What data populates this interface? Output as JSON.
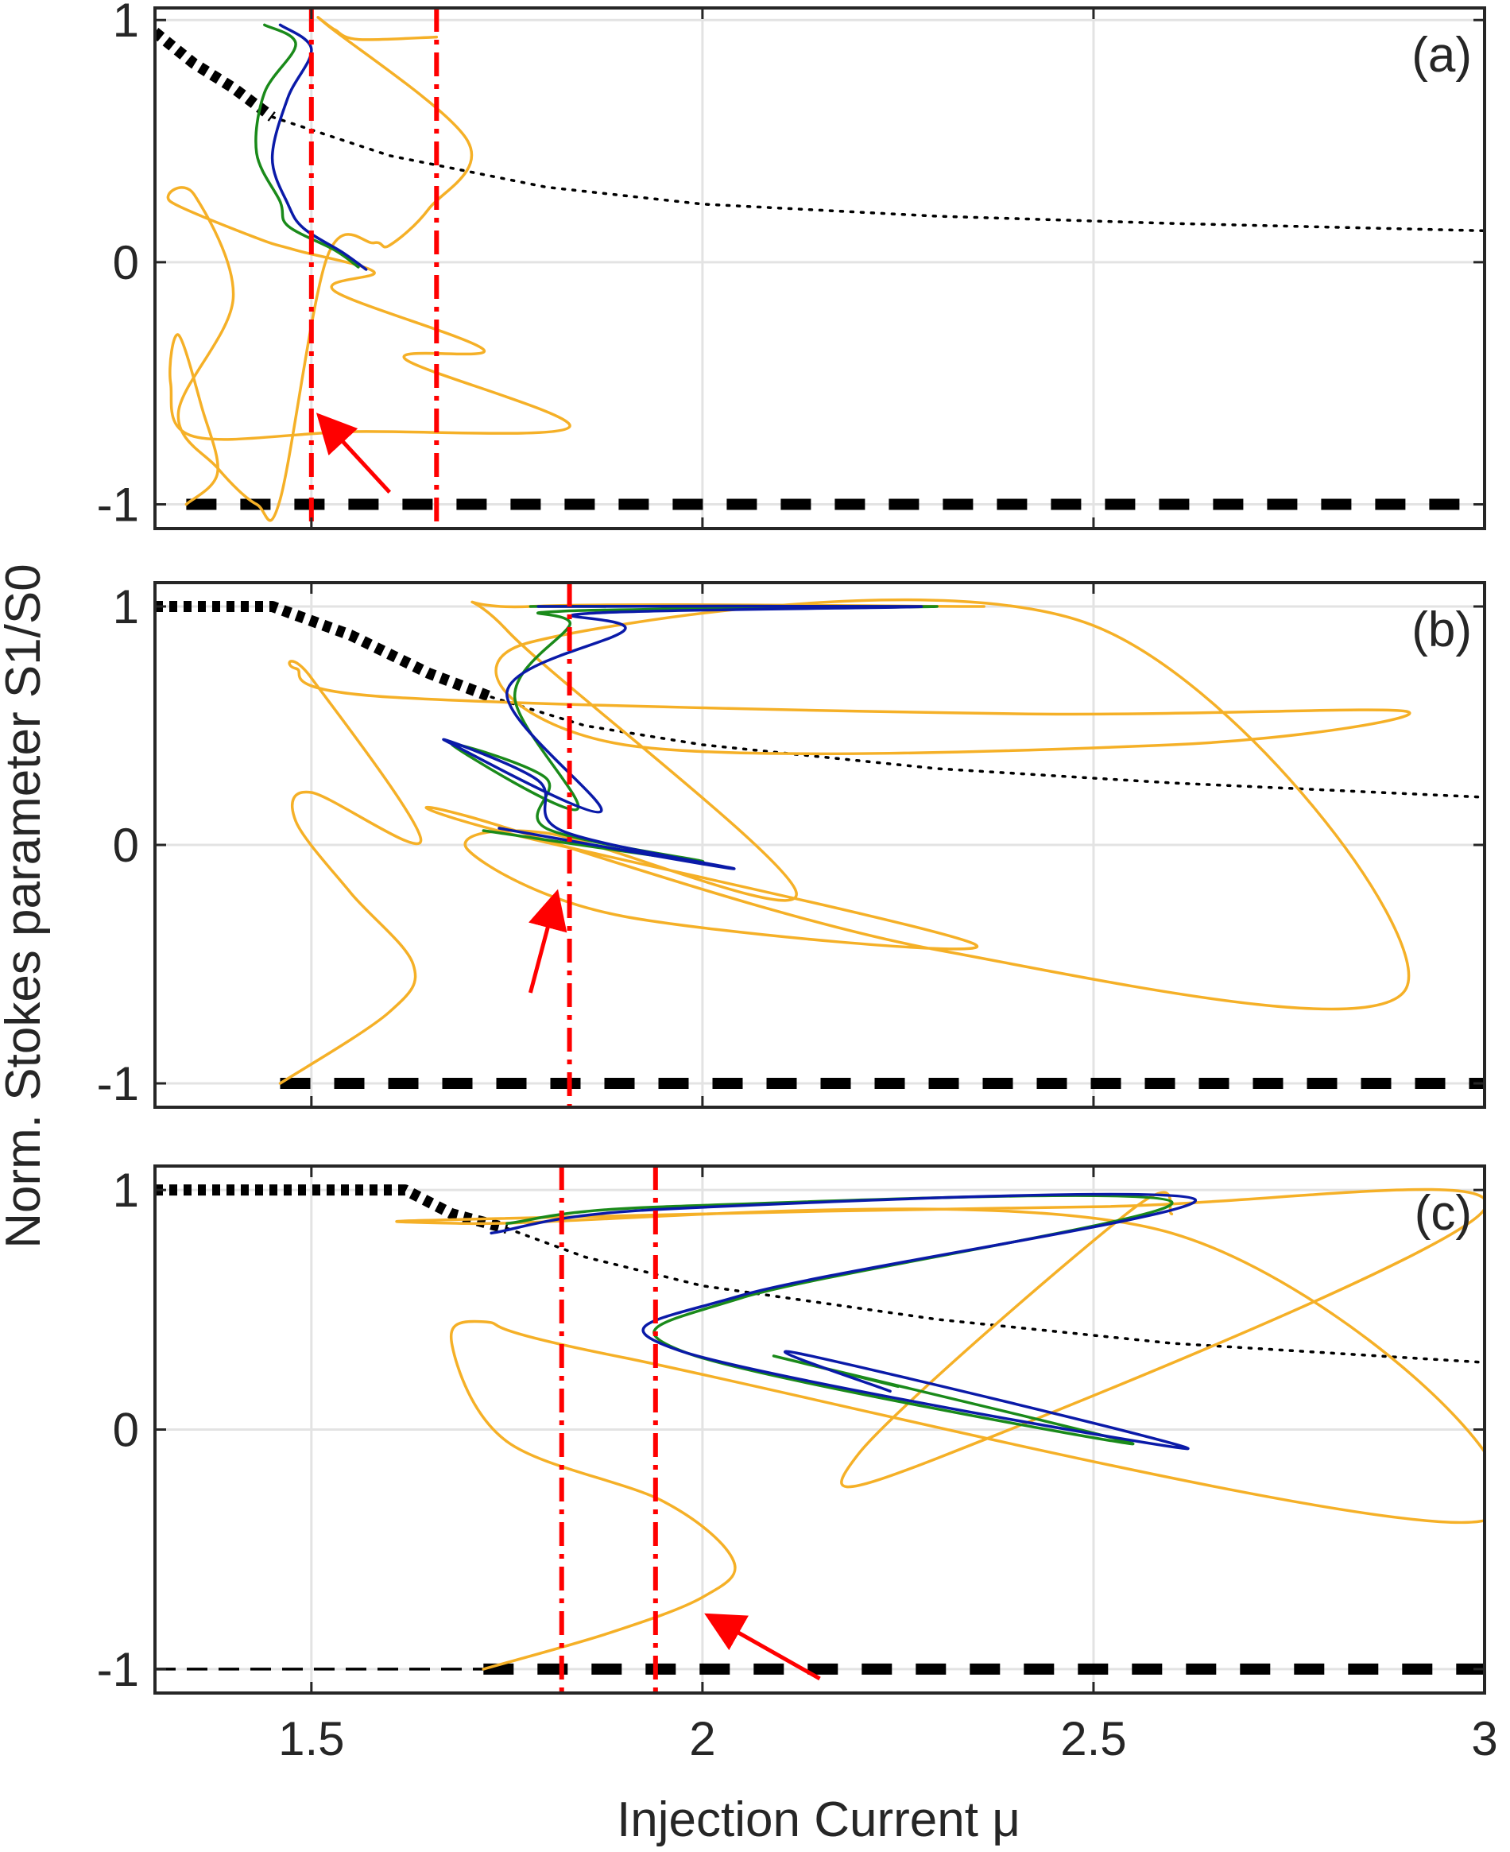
{
  "figure": {
    "xlabel": "Injection Current μ",
    "ylabel": "Norm. Stokes parameter S1/S0"
  },
  "colors": {
    "orange": "#f5b027",
    "green": "#1a8a1a",
    "blue": "#0a1aa8",
    "red": "#ff0000",
    "black": "#000000",
    "grid": "#e3e3e3",
    "axis": "#262626"
  },
  "chart_data": [
    {
      "type": "line",
      "panel": "(a)",
      "xlim": [
        1.3,
        3.0
      ],
      "ylim": [
        -1.1,
        1.05
      ],
      "grid": true,
      "xticks": [
        1.5,
        2,
        2.5,
        3
      ],
      "xtick_labels": [
        "1.5",
        "2",
        "2.5",
        "3"
      ],
      "yticks": [
        -1,
        0,
        1
      ],
      "ytick_labels": [
        "-1",
        "0",
        "1"
      ],
      "series": [
        {
          "name": "stable branch (thick dotted)",
          "style": "thick-dotted",
          "color": "black",
          "x": [
            1.3,
            1.35,
            1.4,
            1.45
          ],
          "y": [
            0.95,
            0.82,
            0.72,
            0.6
          ]
        },
        {
          "name": "unstable branch (dotted)",
          "style": "dotted",
          "color": "black",
          "x": [
            1.45,
            1.6,
            1.8,
            2.0,
            2.3,
            2.6,
            3.0
          ],
          "y": [
            0.6,
            0.44,
            0.31,
            0.24,
            0.19,
            0.16,
            0.13
          ]
        },
        {
          "name": "S1/S0 = -1 branch (dashed)",
          "style": "thick-dashed",
          "color": "black",
          "x": [
            1.34,
            3.0
          ],
          "y": [
            -1,
            -1
          ]
        },
        {
          "name": "orange trajectory",
          "style": "solid",
          "color": "orange",
          "x": [
            1.34,
            1.38,
            1.36,
            1.33,
            1.32,
            1.35,
            1.55,
            1.83,
            1.62,
            1.72,
            1.53,
            1.58,
            1.48,
            1.43,
            1.32,
            1.35,
            1.4,
            1.33,
            1.38,
            1.43,
            1.46,
            1.52,
            1.58,
            1.6,
            1.65,
            1.7,
            1.52,
            1.53,
            1.56,
            1.66
          ],
          "y": [
            -1,
            -0.87,
            -0.6,
            -0.3,
            -0.5,
            -0.72,
            -0.7,
            -0.68,
            -0.4,
            -0.36,
            -0.12,
            -0.04,
            0.05,
            0.1,
            0.25,
            0.28,
            -0.15,
            -0.62,
            -0.85,
            -1.0,
            -0.98,
            0.02,
            0.08,
            0.07,
            0.22,
            0.5,
            0.98,
            0.96,
            0.92,
            0.93
          ]
        },
        {
          "name": "green trajectory",
          "style": "solid",
          "color": "green",
          "x": [
            1.44,
            1.48,
            1.44,
            1.43,
            1.46,
            1.47,
            1.53,
            1.56
          ],
          "y": [
            0.98,
            0.9,
            0.7,
            0.45,
            0.25,
            0.15,
            0.05,
            -0.02
          ]
        },
        {
          "name": "blue trajectory",
          "style": "solid",
          "color": "blue",
          "x": [
            1.46,
            1.5,
            1.47,
            1.45,
            1.47,
            1.49,
            1.54,
            1.57
          ],
          "y": [
            0.98,
            0.88,
            0.68,
            0.43,
            0.24,
            0.14,
            0.04,
            -0.03
          ]
        }
      ],
      "vertical_lines": [
        1.5,
        1.66
      ],
      "arrow": {
        "from": [
          1.6,
          -0.95
        ],
        "to": [
          1.52,
          -0.67
        ]
      }
    },
    {
      "type": "line",
      "panel": "(b)",
      "xlim": [
        1.3,
        3.0
      ],
      "ylim": [
        -1.1,
        1.1
      ],
      "grid": true,
      "xticks": [
        1.5,
        2,
        2.5,
        3
      ],
      "xtick_labels": [
        "1.5",
        "2",
        "2.5",
        "3"
      ],
      "yticks": [
        -1,
        0,
        1
      ],
      "ytick_labels": [
        "-1",
        "0",
        "1"
      ],
      "series": [
        {
          "name": "stable branch (thick dotted)",
          "style": "thick-dotted",
          "color": "black",
          "x": [
            1.3,
            1.45,
            1.55,
            1.65,
            1.73
          ],
          "y": [
            1.0,
            1.0,
            0.88,
            0.72,
            0.62
          ]
        },
        {
          "name": "unstable branch (dotted)",
          "style": "dotted",
          "color": "black",
          "x": [
            1.73,
            1.85,
            2.0,
            2.3,
            2.6,
            3.0
          ],
          "y": [
            0.62,
            0.5,
            0.42,
            0.32,
            0.26,
            0.2
          ]
        },
        {
          "name": "S1/S0 = -1 branch (dashed)",
          "style": "thick-dashed",
          "color": "black",
          "x": [
            1.46,
            3.0
          ],
          "y": [
            -1,
            -1
          ]
        },
        {
          "name": "orange trajectory",
          "style": "solid",
          "color": "orange",
          "x": [
            1.46,
            1.6,
            1.63,
            1.55,
            1.48,
            1.5,
            1.64,
            1.5,
            1.48,
            1.6,
            2.4,
            2.9,
            2.6,
            1.9,
            1.78,
            2.5,
            2.9,
            2.3,
            1.7,
            1.75,
            2.35,
            1.9,
            1.7,
            1.8,
            2.12,
            1.75,
            1.78,
            2.36
          ],
          "y": [
            -1,
            -0.7,
            -0.5,
            -0.2,
            0.1,
            0.22,
            0.02,
            0.7,
            0.74,
            0.62,
            0.55,
            0.56,
            0.42,
            0.42,
            0.85,
            0.92,
            -0.6,
            -0.44,
            0.12,
            0.05,
            -0.42,
            -0.3,
            -0.02,
            0.05,
            -0.2,
            0.9,
            1.0,
            1.0
          ]
        },
        {
          "name": "green trajectory",
          "style": "solid",
          "color": "green",
          "x": [
            1.78,
            2.3,
            1.82,
            1.83,
            1.76,
            1.84,
            1.68,
            1.8,
            1.8,
            2.0,
            1.72
          ],
          "y": [
            1.0,
            1.0,
            0.98,
            0.92,
            0.62,
            0.15,
            0.42,
            0.28,
            0.07,
            -0.07,
            0.06
          ]
        },
        {
          "name": "blue trajectory",
          "style": "solid",
          "color": "blue",
          "x": [
            1.79,
            2.28,
            1.85,
            1.9,
            1.75,
            1.87,
            1.67,
            1.79,
            1.82,
            2.04,
            1.74
          ],
          "y": [
            1.0,
            1.0,
            0.97,
            0.9,
            0.64,
            0.14,
            0.44,
            0.27,
            0.06,
            -0.1,
            0.07
          ]
        }
      ],
      "vertical_lines": [
        1.83
      ],
      "arrow": {
        "from": [
          1.78,
          -0.62
        ],
        "to": [
          1.81,
          -0.25
        ]
      }
    },
    {
      "type": "line",
      "panel": "(c)",
      "xlim": [
        1.3,
        3.0
      ],
      "ylim": [
        -1.1,
        1.1
      ],
      "grid": true,
      "xticks": [
        1.5,
        2,
        2.5,
        3
      ],
      "xtick_labels": [
        "1.5",
        "2",
        "2.5",
        "3"
      ],
      "yticks": [
        -1,
        0,
        1
      ],
      "ytick_labels": [
        "-1",
        "0",
        "1"
      ],
      "series": [
        {
          "name": "stable branch (thick dotted)",
          "style": "thick-dotted",
          "color": "black",
          "x": [
            1.3,
            1.62,
            1.68,
            1.75
          ],
          "y": [
            1.0,
            1.0,
            0.9,
            0.84
          ]
        },
        {
          "name": "unstable branch (dotted)",
          "style": "dotted",
          "color": "black",
          "x": [
            1.75,
            1.85,
            2.0,
            2.3,
            2.6,
            3.0
          ],
          "y": [
            0.84,
            0.72,
            0.6,
            0.46,
            0.36,
            0.28
          ]
        },
        {
          "name": "dashed line",
          "style": "dashed",
          "color": "black",
          "x": [
            1.3,
            1.72
          ],
          "y": [
            -1,
            -1
          ]
        },
        {
          "name": "S1/S0 = -1 branch (dashed)",
          "style": "thick-dashed",
          "color": "black",
          "x": [
            1.72,
            3.0
          ],
          "y": [
            -1,
            -1
          ]
        },
        {
          "name": "orange trajectory",
          "style": "solid",
          "color": "orange",
          "x": [
            1.72,
            1.88,
            2.0,
            2.04,
            1.95,
            1.75,
            1.68,
            1.72,
            1.9,
            3.0,
            2.6,
            1.7,
            1.73,
            2.5,
            3.0,
            2.3,
            2.2,
            2.55,
            2.6
          ],
          "y": [
            -1,
            -0.85,
            -0.7,
            -0.55,
            -0.3,
            -0.05,
            0.35,
            0.45,
            0.3,
            -0.38,
            0.82,
            0.86,
            0.88,
            0.93,
            0.92,
            -0.12,
            -0.1,
            0.92,
            0.9
          ]
        },
        {
          "name": "green trajectory",
          "style": "solid",
          "color": "green",
          "x": [
            1.75,
            1.95,
            2.6,
            2.05,
            1.98,
            2.55,
            2.1,
            2.25
          ],
          "y": [
            0.86,
            0.93,
            0.95,
            0.55,
            0.32,
            -0.06,
            0.3,
            0.18
          ]
        },
        {
          "name": "blue trajectory",
          "style": "solid",
          "color": "blue",
          "x": [
            1.73,
            1.95,
            2.63,
            2.05,
            1.97,
            2.62,
            2.12,
            2.24
          ],
          "y": [
            0.82,
            0.92,
            0.96,
            0.56,
            0.33,
            -0.08,
            0.32,
            0.16
          ]
        }
      ],
      "vertical_lines": [
        1.82,
        1.94
      ],
      "arrow": {
        "from": [
          2.15,
          -1.04
        ],
        "to": [
          2.02,
          -0.8
        ]
      }
    }
  ]
}
